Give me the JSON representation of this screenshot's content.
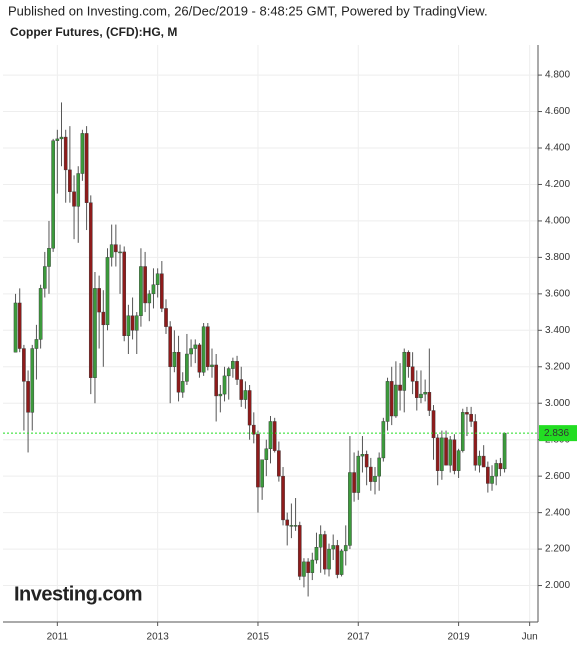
{
  "chart_data": {
    "type": "candlestick",
    "header": "Published on Investing.com, 26/Dec/2019 - 8:48:25 GMT, Powered by TradingView.",
    "title": "Copper Futures, (CFD):HG, M",
    "watermark": "Investing.com",
    "up_color": "#3c9a3c",
    "down_color": "#8e1b1b",
    "last_line_color": "#22dd22",
    "grid": true,
    "x": [
      "2010-03",
      "2010-04",
      "2010-05",
      "2010-06",
      "2010-07",
      "2010-08",
      "2010-09",
      "2010-10",
      "2010-11",
      "2010-12",
      "2011-01",
      "2011-02",
      "2011-03",
      "2011-04",
      "2011-05",
      "2011-06",
      "2011-07",
      "2011-08",
      "2011-09",
      "2011-10",
      "2011-11",
      "2011-12",
      "2012-01",
      "2012-02",
      "2012-03",
      "2012-04",
      "2012-05",
      "2012-06",
      "2012-07",
      "2012-08",
      "2012-09",
      "2012-10",
      "2012-11",
      "2012-12",
      "2013-01",
      "2013-02",
      "2013-03",
      "2013-04",
      "2013-05",
      "2013-06",
      "2013-07",
      "2013-08",
      "2013-09",
      "2013-10",
      "2013-11",
      "2013-12",
      "2014-01",
      "2014-02",
      "2014-03",
      "2014-04",
      "2014-05",
      "2014-06",
      "2014-07",
      "2014-08",
      "2014-09",
      "2014-10",
      "2014-11",
      "2014-12",
      "2015-01",
      "2015-02",
      "2015-03",
      "2015-04",
      "2015-05",
      "2015-06",
      "2015-07",
      "2015-08",
      "2015-09",
      "2015-10",
      "2015-11",
      "2015-12",
      "2016-01",
      "2016-02",
      "2016-03",
      "2016-04",
      "2016-05",
      "2016-06",
      "2016-07",
      "2016-08",
      "2016-09",
      "2016-10",
      "2016-11",
      "2016-12",
      "2017-01",
      "2017-02",
      "2017-03",
      "2017-04",
      "2017-05",
      "2017-06",
      "2017-07",
      "2017-08",
      "2017-09",
      "2017-10",
      "2017-11",
      "2017-12",
      "2018-01",
      "2018-02",
      "2018-03",
      "2018-04",
      "2018-05",
      "2018-06",
      "2018-07",
      "2018-08",
      "2018-09",
      "2018-10",
      "2018-11",
      "2018-12",
      "2019-01",
      "2019-02",
      "2019-03",
      "2019-04",
      "2019-05",
      "2019-06",
      "2019-07",
      "2019-08",
      "2019-09",
      "2019-10",
      "2019-11",
      "2019-12"
    ],
    "open": [
      3.28,
      3.55,
      3.3,
      3.12,
      2.95,
      3.3,
      3.35,
      3.63,
      3.75,
      3.85,
      4.44,
      4.45,
      4.46,
      4.28,
      4.16,
      4.08,
      4.26,
      4.48,
      4.1,
      3.14,
      3.63,
      3.5,
      3.43,
      3.8,
      3.87,
      3.83,
      3.83,
      3.37,
      3.48,
      3.4,
      3.48,
      3.75,
      3.55,
      3.6,
      3.65,
      3.71,
      3.52,
      3.42,
      3.2,
      3.28,
      3.06,
      3.12,
      3.27,
      3.3,
      3.32,
      3.17,
      3.42,
      3.2,
      3.21,
      3.04,
      3.05,
      3.15,
      3.19,
      3.23,
      3.13,
      3.02,
      3.07,
      2.88,
      2.83,
      2.54,
      2.69,
      2.75,
      2.9,
      2.74,
      2.6,
      2.36,
      2.33,
      2.33,
      2.33,
      2.05,
      2.13,
      2.07,
      2.14,
      2.21,
      2.28,
      2.09,
      2.2,
      2.22,
      2.06,
      2.19,
      2.22,
      2.62,
      2.51,
      2.71,
      2.72,
      2.65,
      2.57,
      2.6,
      2.7,
      2.9,
      3.12,
      2.93,
      3.1,
      3.07,
      3.28,
      3.2,
      3.12,
      3.03,
      3.05,
      3.06,
      2.96,
      2.81,
      2.63,
      2.81,
      2.66,
      2.8,
      2.63,
      2.74,
      2.95,
      2.94,
      2.9,
      2.66,
      2.71,
      2.65,
      2.56,
      2.6,
      2.67,
      2.64
    ],
    "high": [
      3.6,
      3.63,
      3.32,
      3.18,
      3.32,
      3.43,
      3.65,
      3.83,
      4.0,
      4.45,
      4.5,
      4.65,
      4.5,
      4.52,
      4.25,
      4.3,
      4.5,
      4.52,
      4.14,
      3.72,
      3.7,
      3.62,
      3.85,
      3.98,
      3.98,
      3.87,
      3.86,
      3.54,
      3.58,
      3.5,
      3.85,
      3.83,
      3.62,
      3.74,
      3.74,
      3.78,
      3.57,
      3.45,
      3.4,
      3.37,
      3.17,
      3.38,
      3.35,
      3.35,
      3.33,
      3.44,
      3.44,
      3.3,
      3.27,
      3.1,
      3.2,
      3.2,
      3.25,
      3.26,
      3.2,
      3.12,
      3.1,
      2.95,
      2.85,
      2.67,
      2.8,
      2.93,
      2.92,
      2.79,
      2.65,
      2.4,
      2.45,
      2.48,
      2.35,
      2.15,
      2.15,
      2.18,
      2.29,
      2.33,
      2.3,
      2.23,
      2.28,
      2.25,
      2.2,
      2.33,
      2.82,
      2.73,
      2.74,
      2.82,
      2.74,
      2.7,
      2.65,
      2.73,
      2.92,
      3.14,
      3.2,
      3.23,
      3.22,
      3.3,
      3.29,
      3.28,
      3.18,
      3.18,
      3.13,
      3.3,
      2.99,
      2.83,
      2.85,
      2.85,
      2.82,
      2.83,
      2.75,
      2.97,
      2.98,
      2.98,
      2.94,
      2.74,
      2.77,
      2.68,
      2.66,
      2.69,
      2.7,
      2.84
    ],
    "low": [
      3.28,
      3.28,
      2.85,
      2.73,
      2.85,
      3.13,
      3.3,
      3.58,
      3.6,
      3.83,
      4.15,
      4.3,
      4.1,
      4.1,
      3.9,
      3.88,
      4.22,
      3.95,
      3.05,
      3.0,
      3.3,
      3.2,
      3.4,
      3.75,
      3.75,
      3.6,
      3.34,
      3.27,
      3.35,
      3.27,
      3.42,
      3.5,
      3.45,
      3.52,
      3.58,
      3.5,
      3.38,
      3.0,
      3.17,
      3.01,
      3.03,
      3.1,
      3.2,
      3.22,
      3.14,
      3.15,
      3.18,
      3.14,
      2.9,
      2.95,
      3.01,
      3.02,
      3.14,
      3.1,
      2.98,
      2.97,
      2.8,
      2.78,
      2.4,
      2.47,
      2.6,
      2.67,
      2.73,
      2.57,
      2.33,
      2.22,
      2.26,
      2.3,
      2.03,
      1.99,
      1.94,
      2.03,
      2.12,
      2.07,
      2.06,
      2.05,
      2.14,
      2.04,
      2.05,
      2.11,
      2.2,
      2.46,
      2.47,
      2.62,
      2.55,
      2.52,
      2.5,
      2.52,
      2.68,
      2.85,
      2.88,
      2.92,
      2.96,
      2.95,
      3.14,
      3.05,
      2.96,
      3.0,
      3.01,
      2.93,
      2.69,
      2.55,
      2.58,
      2.66,
      2.62,
      2.61,
      2.59,
      2.73,
      2.82,
      2.87,
      2.63,
      2.62,
      2.66,
      2.51,
      2.52,
      2.55,
      2.6,
      2.62
    ],
    "close": [
      3.55,
      3.3,
      3.12,
      2.95,
      3.3,
      3.35,
      3.63,
      3.75,
      3.85,
      4.44,
      4.45,
      4.46,
      4.28,
      4.16,
      4.08,
      4.26,
      4.48,
      4.1,
      3.14,
      3.63,
      3.5,
      3.43,
      3.8,
      3.87,
      3.83,
      3.83,
      3.37,
      3.48,
      3.4,
      3.48,
      3.75,
      3.55,
      3.6,
      3.65,
      3.71,
      3.52,
      3.42,
      3.2,
      3.28,
      3.06,
      3.12,
      3.27,
      3.3,
      3.32,
      3.17,
      3.42,
      3.2,
      3.21,
      3.04,
      3.05,
      3.15,
      3.19,
      3.23,
      3.13,
      3.02,
      3.07,
      2.88,
      2.83,
      2.54,
      2.69,
      2.75,
      2.9,
      2.74,
      2.6,
      2.36,
      2.33,
      2.33,
      2.33,
      2.05,
      2.13,
      2.07,
      2.14,
      2.21,
      2.28,
      2.09,
      2.2,
      2.22,
      2.06,
      2.19,
      2.22,
      2.62,
      2.51,
      2.71,
      2.72,
      2.65,
      2.57,
      2.6,
      2.7,
      2.9,
      3.12,
      2.93,
      3.1,
      3.07,
      3.28,
      3.2,
      3.12,
      3.03,
      3.05,
      3.06,
      2.96,
      2.81,
      2.63,
      2.81,
      2.66,
      2.8,
      2.63,
      2.74,
      2.95,
      2.94,
      2.9,
      2.66,
      2.71,
      2.65,
      2.56,
      2.6,
      2.67,
      2.64,
      2.836
    ],
    "close_value_labels": {
      "117": "2.836"
    },
    "ylim": [
      1.8,
      4.965
    ],
    "yticks": [
      {
        "value": 2.0,
        "label": "2.000"
      },
      {
        "value": 2.2,
        "label": "2.200"
      },
      {
        "value": 2.4,
        "label": "2.400"
      },
      {
        "value": 2.6,
        "label": "2.600"
      },
      {
        "value": 2.8,
        "label": "2.800"
      },
      {
        "value": 3.0,
        "label": "3.000"
      },
      {
        "value": 3.2,
        "label": "3.200"
      },
      {
        "value": 3.4,
        "label": "3.400"
      },
      {
        "value": 3.6,
        "label": "3.600"
      },
      {
        "value": 3.8,
        "label": "3.800"
      },
      {
        "value": 4.0,
        "label": "4.000"
      },
      {
        "value": 4.2,
        "label": "4.200"
      },
      {
        "value": 4.4,
        "label": "4.400"
      },
      {
        "value": 4.6,
        "label": "4.600"
      },
      {
        "value": 4.8,
        "label": "4.800"
      }
    ],
    "xlim": [
      "2009-12",
      "2020-08"
    ],
    "xticks": [
      {
        "value": "2011-01",
        "label": "2011"
      },
      {
        "value": "2013-01",
        "label": "2013"
      },
      {
        "value": "2015-01",
        "label": "2015"
      },
      {
        "value": "2017-01",
        "label": "2017"
      },
      {
        "value": "2019-01",
        "label": "2019"
      },
      {
        "value": "2020-06",
        "label": "Jun"
      }
    ]
  }
}
